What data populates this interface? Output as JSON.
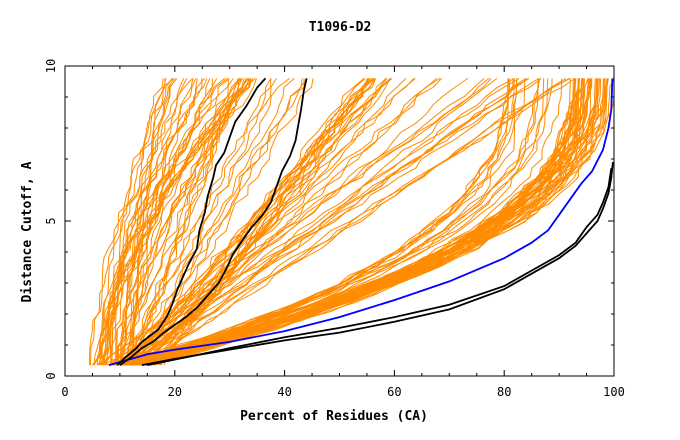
{
  "chart_data": {
    "type": "line",
    "title": "T1096-D2",
    "xlabel": "Percent of Residues (CA)",
    "ylabel": "Distance Cutoff, A",
    "xlim": [
      0,
      100
    ],
    "ylim": [
      0,
      10
    ],
    "x_ticks": [
      "0",
      "20",
      "40",
      "60",
      "80",
      "100"
    ],
    "y_ticks": [
      "0",
      "5",
      "10"
    ],
    "grid": false,
    "legend": "none",
    "background_series_count": 160,
    "series": [
      {
        "color": "#0000ff",
        "points": [
          [
            8,
            0.35
          ],
          [
            11,
            0.5
          ],
          [
            15,
            0.7
          ],
          [
            20,
            0.85
          ],
          [
            30,
            1.1
          ],
          [
            40,
            1.45
          ],
          [
            50,
            1.9
          ],
          [
            60,
            2.45
          ],
          [
            70,
            3.05
          ],
          [
            80,
            3.8
          ],
          [
            85,
            4.3
          ],
          [
            88,
            4.7
          ],
          [
            90,
            5.2
          ],
          [
            92,
            5.7
          ],
          [
            94,
            6.2
          ],
          [
            96,
            6.6
          ],
          [
            98,
            7.3
          ],
          [
            99,
            8
          ],
          [
            99.5,
            8.6
          ],
          [
            99.7,
            9.6
          ]
        ]
      },
      {
        "color": "#000000",
        "points": [
          [
            14,
            0.35
          ],
          [
            20,
            0.55
          ],
          [
            30,
            0.85
          ],
          [
            40,
            1.15
          ],
          [
            50,
            1.4
          ],
          [
            60,
            1.75
          ],
          [
            70,
            2.15
          ],
          [
            80,
            2.8
          ],
          [
            85,
            3.3
          ],
          [
            90,
            3.8
          ],
          [
            93,
            4.2
          ],
          [
            95,
            4.6
          ],
          [
            97,
            5.0
          ],
          [
            98,
            5.4
          ],
          [
            99,
            5.9
          ],
          [
            99.5,
            6.4
          ],
          [
            99.8,
            6.9
          ]
        ]
      },
      {
        "color": "#000000",
        "points": [
          [
            15,
            0.35
          ],
          [
            22,
            0.6
          ],
          [
            30,
            0.9
          ],
          [
            40,
            1.25
          ],
          [
            50,
            1.55
          ],
          [
            60,
            1.9
          ],
          [
            70,
            2.3
          ],
          [
            80,
            2.9
          ],
          [
            86,
            3.5
          ],
          [
            90,
            3.9
          ],
          [
            93,
            4.3
          ],
          [
            95,
            4.8
          ],
          [
            97,
            5.2
          ],
          [
            98,
            5.6
          ],
          [
            99,
            6.1
          ],
          [
            99.5,
            6.7
          ]
        ]
      },
      {
        "color": "#000000",
        "points": [
          [
            9.5,
            0.35
          ],
          [
            11,
            0.6
          ],
          [
            13,
            0.9
          ],
          [
            14,
            1.1
          ],
          [
            17,
            1.5
          ],
          [
            18.5,
            1.9
          ],
          [
            19.5,
            2.3
          ],
          [
            20.5,
            2.8
          ],
          [
            21.5,
            3.2
          ],
          [
            22.5,
            3.6
          ],
          [
            24,
            4.1
          ],
          [
            24.5,
            4.7
          ],
          [
            25.5,
            5.3
          ],
          [
            26,
            5.8
          ],
          [
            27,
            6.4
          ],
          [
            27.5,
            6.8
          ],
          [
            29,
            7.2
          ],
          [
            30,
            7.7
          ],
          [
            31,
            8.2
          ],
          [
            33,
            8.7
          ],
          [
            35,
            9.3
          ],
          [
            36.5,
            9.6
          ]
        ]
      },
      {
        "color": "#000000",
        "points": [
          [
            10,
            0.35
          ],
          [
            12,
            0.6
          ],
          [
            14,
            0.9
          ],
          [
            16,
            1.1
          ],
          [
            18,
            1.4
          ],
          [
            22,
            1.9
          ],
          [
            24,
            2.2
          ],
          [
            26,
            2.6
          ],
          [
            28,
            3.0
          ],
          [
            29.5,
            3.5
          ],
          [
            30.5,
            3.9
          ],
          [
            32,
            4.3
          ],
          [
            34,
            4.8
          ],
          [
            36,
            5.2
          ],
          [
            37.5,
            5.6
          ],
          [
            38.5,
            6.1
          ],
          [
            39.5,
            6.6
          ],
          [
            41,
            7.1
          ],
          [
            42,
            7.6
          ],
          [
            42.5,
            8.1
          ],
          [
            43,
            8.6
          ],
          [
            43.5,
            9.2
          ],
          [
            44,
            9.6
          ]
        ]
      }
    ]
  }
}
